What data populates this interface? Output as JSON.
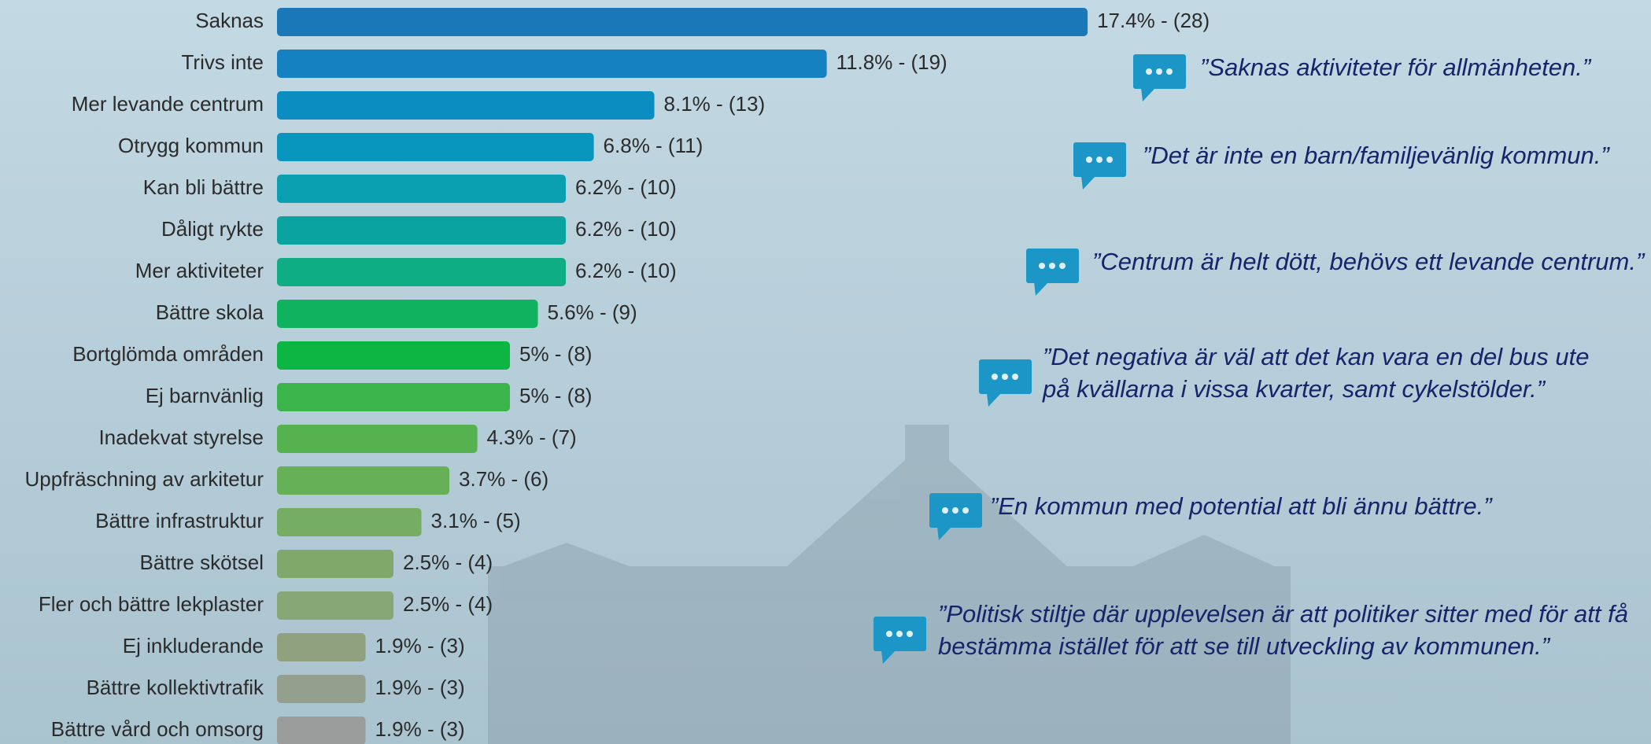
{
  "chart_data": {
    "type": "bar",
    "orientation": "horizontal",
    "categories": [
      "Saknas",
      "Trivs inte",
      "Mer levande centrum",
      "Otrygg kommun",
      "Kan bli bättre",
      "Dåligt rykte",
      "Mer aktiviteter",
      "Bättre skola",
      "Bortglömda områden",
      "Ej barnvänlig",
      "Inadekvat styrelse",
      "Uppfräschning av arkitetur",
      "Bättre infrastruktur",
      "Bättre skötsel",
      "Fler och bättre lekplaster",
      "Ej inkluderande",
      "Bättre kollektivtrafik",
      "Bättre vård och omsorg"
    ],
    "values": [
      17.4,
      11.8,
      8.1,
      6.8,
      6.2,
      6.2,
      6.2,
      5.6,
      5,
      5,
      4.3,
      3.7,
      3.1,
      2.5,
      2.5,
      1.9,
      1.9,
      1.9
    ],
    "value_labels": [
      "17.4% - (28)",
      "11.8% - (19)",
      "8.1% - (13)",
      "6.8% - (11)",
      "6.2% - (10)",
      "6.2% - (10)",
      "6.2% - (10)",
      "5.6% - (9)",
      "5% - (8)",
      "5% - (8)",
      "4.3% - (7)",
      "3.7% - (6)",
      "3.1% - (5)",
      "2.5% - (4)",
      "2.5% - (4)",
      "1.9% - (3)",
      "1.9% - (3)",
      "1.9% - (3)"
    ],
    "colors": [
      "#1a78b8",
      "#1681c0",
      "#0b8dc1",
      "#0896bf",
      "#0aa0b2",
      "#0aa39f",
      "#0ead84",
      "#10b260",
      "#0db543",
      "#3bb54a",
      "#55b24e",
      "#66b058",
      "#75ae62",
      "#7fa86a",
      "#86a776",
      "#8fa17f",
      "#959f8e",
      "#9b9c9c"
    ],
    "annotations": [
      [
        "”Saknas aktiviteter för allmänheten.”"
      ],
      [
        "”Det är inte en barn/familjevänlig kommun.”"
      ],
      [
        "”Centrum är helt dött, behövs ett levande centrum.”"
      ],
      [
        "”Det negativa är väl att det kan vara en del bus ute",
        "på kvällarna i vissa kvarter, samt cykelstölder.”"
      ],
      [
        "”En kommun med potential att bli ännu bättre.”"
      ],
      [
        "”Politisk stiltje där upplevelsen är att politiker sitter med för att få",
        "bestämma istället för att se till utveckling av kommunen.”"
      ]
    ]
  }
}
